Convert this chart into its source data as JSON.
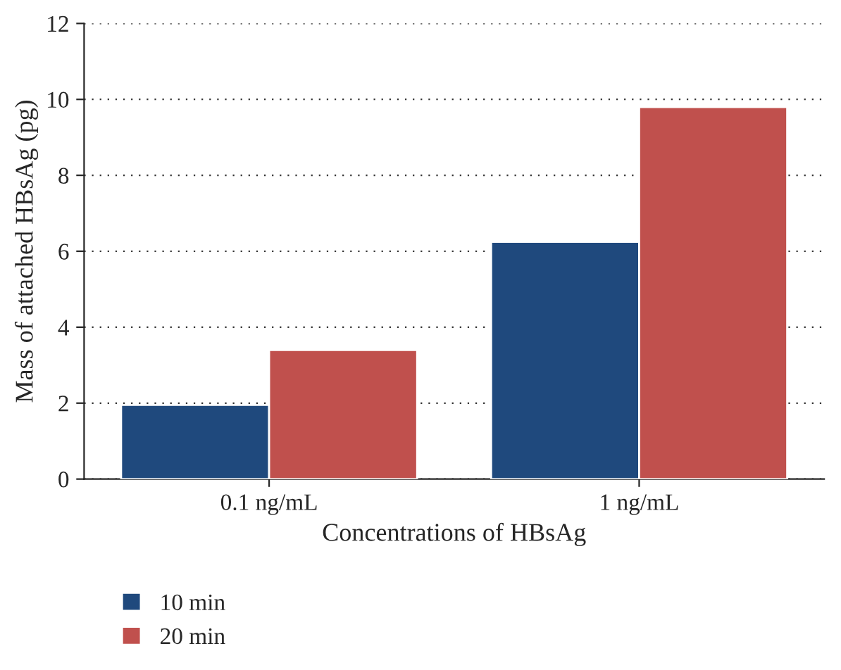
{
  "chart_data": {
    "type": "bar",
    "xlabel": "Concentrations of HBsAg",
    "ylabel": "Mass of attached HBsAg (pg)",
    "categories": [
      "0.1 ng/mL",
      "1 ng/mL"
    ],
    "series": [
      {
        "name": "10 min",
        "color": "#1f497d",
        "values": [
          1.95,
          6.25
        ]
      },
      {
        "name": "20 min",
        "color": "#c0504d",
        "values": [
          3.4,
          9.8
        ]
      }
    ],
    "ylim": [
      0,
      12
    ],
    "yticks": [
      0,
      2,
      4,
      6,
      8,
      10,
      12
    ],
    "grid": "y",
    "legend": "bottom left"
  }
}
